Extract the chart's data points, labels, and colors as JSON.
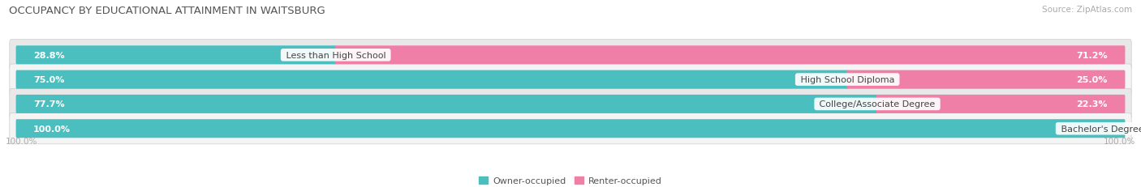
{
  "title": "OCCUPANCY BY EDUCATIONAL ATTAINMENT IN WAITSBURG",
  "source": "Source: ZipAtlas.com",
  "categories": [
    "Less than High School",
    "High School Diploma",
    "College/Associate Degree",
    "Bachelor's Degree or higher"
  ],
  "owner_values": [
    28.8,
    75.0,
    77.7,
    100.0
  ],
  "renter_values": [
    71.2,
    25.0,
    22.3,
    0.0
  ],
  "owner_color": "#4bbfbf",
  "renter_color": "#f07fa8",
  "row_bg_even": "#e8e8e8",
  "row_bg_odd": "#f4f4f4",
  "title_fontsize": 9.5,
  "label_fontsize": 8.0,
  "value_fontsize": 8.0,
  "tick_fontsize": 7.5,
  "source_fontsize": 7.5,
  "legend_fontsize": 8.0
}
